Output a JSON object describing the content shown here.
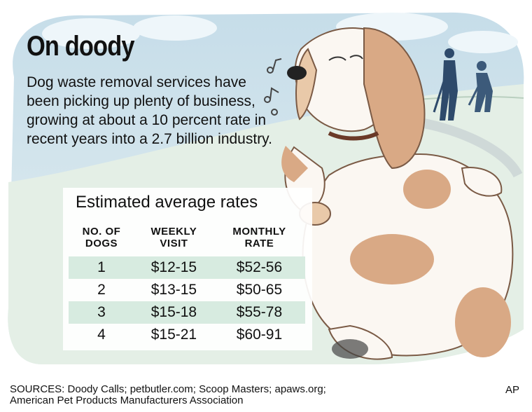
{
  "title": "On doody",
  "intro": "Dog waste removal services have been picking up plenty of business, growing at about a 10 percent rate in recent years into a 2.7 billion industry.",
  "table": {
    "title": "Estimated average rates",
    "headers": {
      "dogs_line1": "NO. OF",
      "dogs_line2": "DOGS",
      "weekly_line1": "WEEKLY",
      "weekly_line2": "VISIT",
      "monthly_line1": "MONTHLY",
      "monthly_line2": "RATE"
    },
    "rows": [
      {
        "dogs": "1",
        "weekly": "$12-15",
        "monthly": "$52-56"
      },
      {
        "dogs": "2",
        "weekly": "$13-15",
        "monthly": "$50-65"
      },
      {
        "dogs": "3",
        "weekly": "$15-18",
        "monthly": "$55-78"
      },
      {
        "dogs": "4",
        "weekly": "$15-21",
        "monthly": "$60-91"
      }
    ]
  },
  "sources": {
    "line1": "SOURCES: Doody Calls; petbutler.com; Scoop Masters; apaws.org;",
    "line2": "American Pet Products Manufacturers Association"
  },
  "credit": "AP",
  "colors": {
    "sky": "#cfe3ee",
    "grass": "#e4efe6",
    "table_shade": "#d7ebe0",
    "dog_spots": "#d9a985",
    "worker": "#2e4a6b"
  },
  "illustration": {
    "subject": "basset-hound",
    "background": "workers-scooping-lawn"
  }
}
